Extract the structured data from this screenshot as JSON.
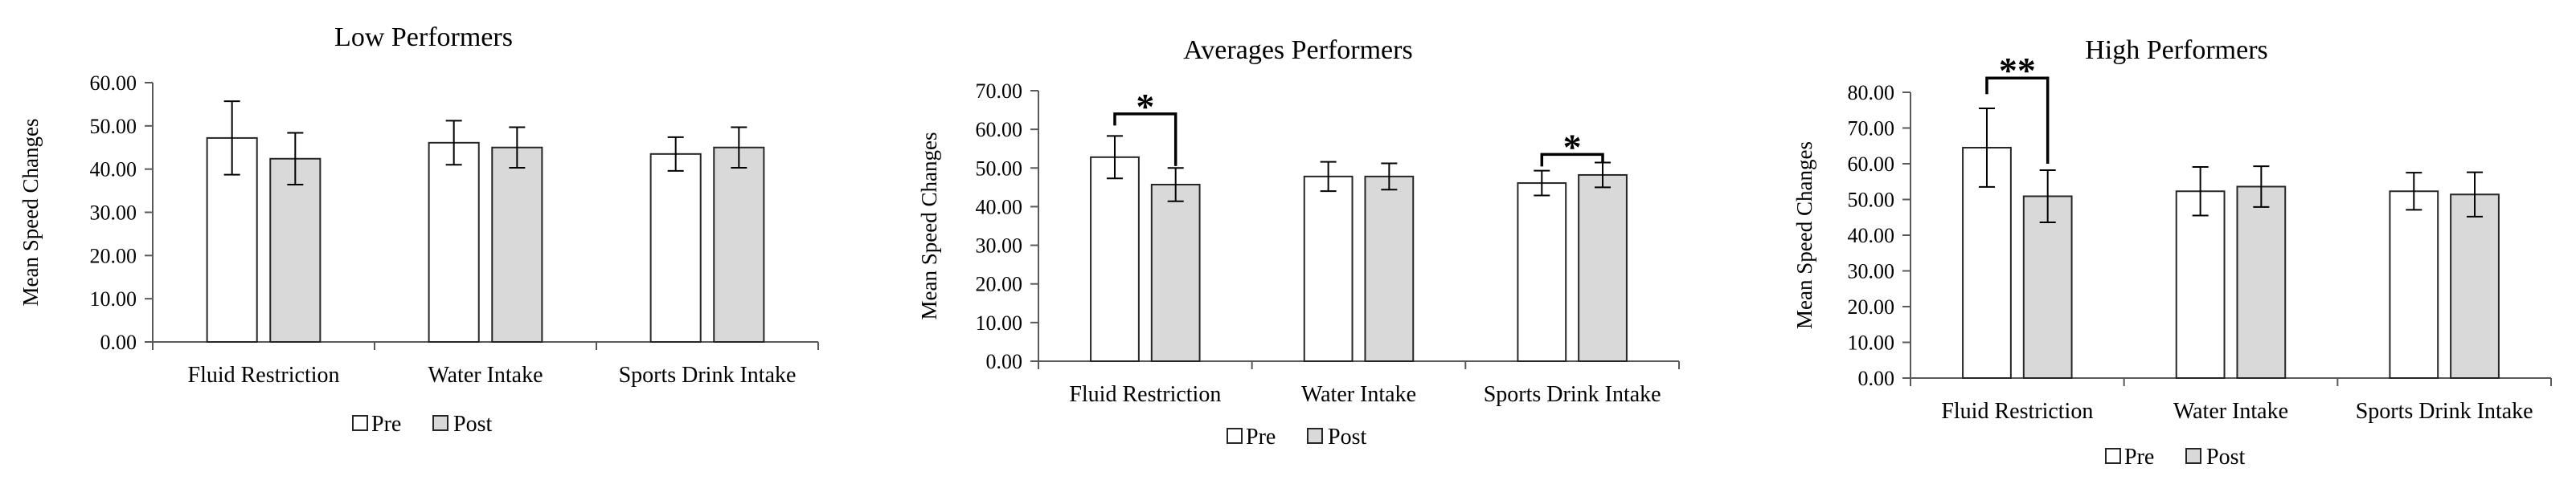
{
  "chart_data": [
    {
      "type": "bar",
      "title": "Low Performers",
      "xlabel": "",
      "ylabel": "Mean Speed Changes",
      "categories": [
        "Fluid Restriction",
        "Water Intake",
        "Sports Drink Intake"
      ],
      "ylim": [
        0,
        60
      ],
      "yticks": [
        "0.00",
        "10.00",
        "20.00",
        "30.00",
        "40.00",
        "50.00",
        "60.00"
      ],
      "series": [
        {
          "name": "Pre",
          "values": [
            47.2,
            46.1,
            43.5
          ],
          "errors": [
            8.5,
            5.1,
            3.9
          ],
          "color": "#ffffff"
        },
        {
          "name": "Post",
          "values": [
            42.4,
            45.0,
            45.0
          ],
          "errors": [
            6.0,
            4.7,
            4.7
          ],
          "color": "#d9d9d9"
        }
      ],
      "error_bars": true,
      "grid": false,
      "legend": "bottom",
      "annotations": []
    },
    {
      "type": "bar",
      "title": "Averages Performers",
      "xlabel": "",
      "ylabel": "Mean Speed Changes",
      "categories": [
        "Fluid Restriction",
        "Water Intake",
        "Sports Drink Intake"
      ],
      "ylim": [
        0,
        70
      ],
      "yticks": [
        "0.00",
        "10.00",
        "20.00",
        "30.00",
        "40.00",
        "50.00",
        "60.00",
        "70.00"
      ],
      "series": [
        {
          "name": "Pre",
          "values": [
            52.8,
            47.8,
            46.1
          ],
          "errors": [
            5.5,
            3.8,
            3.2
          ],
          "color": "#ffffff"
        },
        {
          "name": "Post",
          "values": [
            45.7,
            47.8,
            48.2
          ],
          "errors": [
            4.3,
            3.4,
            3.2
          ],
          "color": "#d9d9d9"
        }
      ],
      "error_bars": true,
      "grid": false,
      "legend": "bottom",
      "annotations": [
        {
          "text": "*",
          "category": 0,
          "level": 64.0,
          "pre_end": 61.0,
          "post_end": 50.5
        },
        {
          "text": "*",
          "category": 2,
          "level": 53.5,
          "pre_end": 50.4,
          "post_end": 51.6
        }
      ]
    },
    {
      "type": "bar",
      "title": "High Performers",
      "xlabel": "",
      "ylabel": "Mean Speed Changes",
      "categories": [
        "Fluid Restriction",
        "Water Intake",
        "Sports Drink Intake"
      ],
      "ylim": [
        0,
        80
      ],
      "yticks": [
        "0.00",
        "10.00",
        "20.00",
        "30.00",
        "40.00",
        "50.00",
        "60.00",
        "70.00",
        "80.00"
      ],
      "series": [
        {
          "name": "Pre",
          "values": [
            64.5,
            52.3,
            52.3
          ],
          "errors": [
            11.0,
            6.8,
            5.2
          ],
          "color": "#ffffff"
        },
        {
          "name": "Post",
          "values": [
            50.9,
            53.6,
            51.4
          ],
          "errors": [
            7.3,
            5.7,
            6.2
          ],
          "color": "#d9d9d9"
        }
      ],
      "error_bars": true,
      "grid": false,
      "legend": "bottom",
      "annotations": [
        {
          "text": "**",
          "category": 0,
          "level": 84.0,
          "pre_end": 79.5,
          "post_end": 60.0
        }
      ]
    }
  ]
}
